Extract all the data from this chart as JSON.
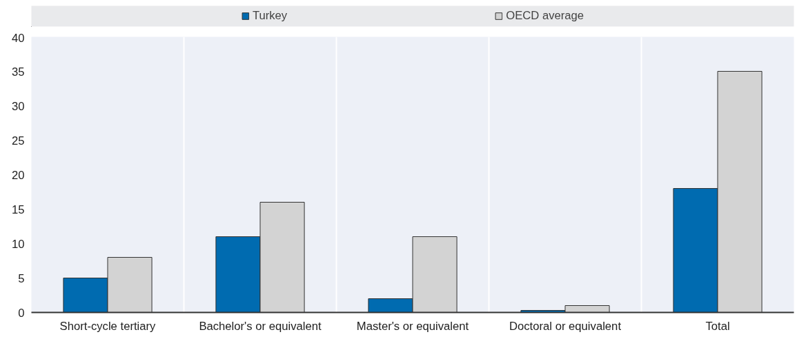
{
  "chart_data": {
    "type": "bar",
    "categories": [
      "Short-cycle tertiary",
      "Bachelor's or equivalent",
      "Master's or equivalent",
      "Doctoral or equivalent",
      "Total"
    ],
    "series": [
      {
        "name": "Turkey",
        "color": "#006bb0",
        "values": [
          5,
          11,
          2,
          0.3,
          18
        ]
      },
      {
        "name": "OECD average",
        "color": "#d3d3d3",
        "values": [
          8,
          16,
          11,
          1,
          35
        ]
      }
    ],
    "ylim": [
      0,
      40
    ],
    "yticks": [
      0,
      5,
      10,
      15,
      20,
      25,
      30,
      35,
      40
    ],
    "grid": "x",
    "legend": "top"
  }
}
